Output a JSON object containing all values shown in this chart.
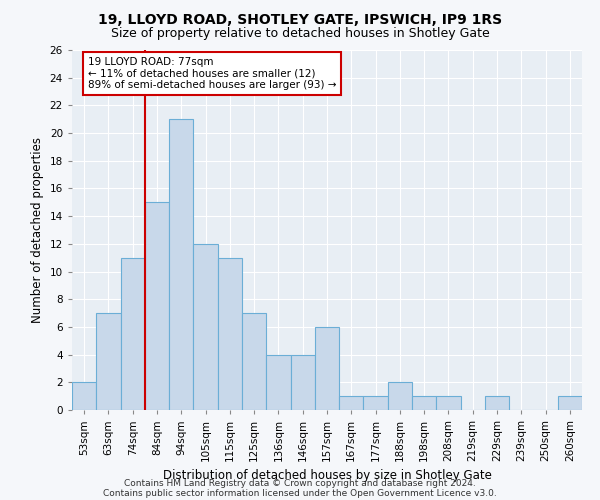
{
  "title1": "19, LLOYD ROAD, SHOTLEY GATE, IPSWICH, IP9 1RS",
  "title2": "Size of property relative to detached houses in Shotley Gate",
  "xlabel": "Distribution of detached houses by size in Shotley Gate",
  "ylabel": "Number of detached properties",
  "categories": [
    "53sqm",
    "63sqm",
    "74sqm",
    "84sqm",
    "94sqm",
    "105sqm",
    "115sqm",
    "125sqm",
    "136sqm",
    "146sqm",
    "157sqm",
    "167sqm",
    "177sqm",
    "188sqm",
    "198sqm",
    "208sqm",
    "219sqm",
    "229sqm",
    "239sqm",
    "250sqm",
    "260sqm"
  ],
  "values": [
    2,
    7,
    11,
    15,
    21,
    12,
    11,
    7,
    4,
    4,
    6,
    1,
    1,
    2,
    1,
    1,
    0,
    1,
    0,
    0,
    1
  ],
  "bar_color": "#c8d8ea",
  "bar_edge_color": "#6baed6",
  "vline_color": "#cc0000",
  "vline_pos": 2.5,
  "annotation_title": "19 LLOYD ROAD: 77sqm",
  "annotation_line1": "← 11% of detached houses are smaller (12)",
  "annotation_line2": "89% of semi-detached houses are larger (93) →",
  "annotation_box_color": "#cc0000",
  "ylim": [
    0,
    26
  ],
  "yticks": [
    0,
    2,
    4,
    6,
    8,
    10,
    12,
    14,
    16,
    18,
    20,
    22,
    24,
    26
  ],
  "footnote1": "Contains HM Land Registry data © Crown copyright and database right 2024.",
  "footnote2": "Contains public sector information licensed under the Open Government Licence v3.0.",
  "plot_bg_color": "#e8eef4",
  "fig_bg_color": "#f5f7fa",
  "grid_color": "#ffffff",
  "title_fontsize": 10,
  "subtitle_fontsize": 9,
  "axis_label_fontsize": 8.5,
  "tick_fontsize": 7.5,
  "annotation_fontsize": 7.5,
  "footnote_fontsize": 6.5
}
